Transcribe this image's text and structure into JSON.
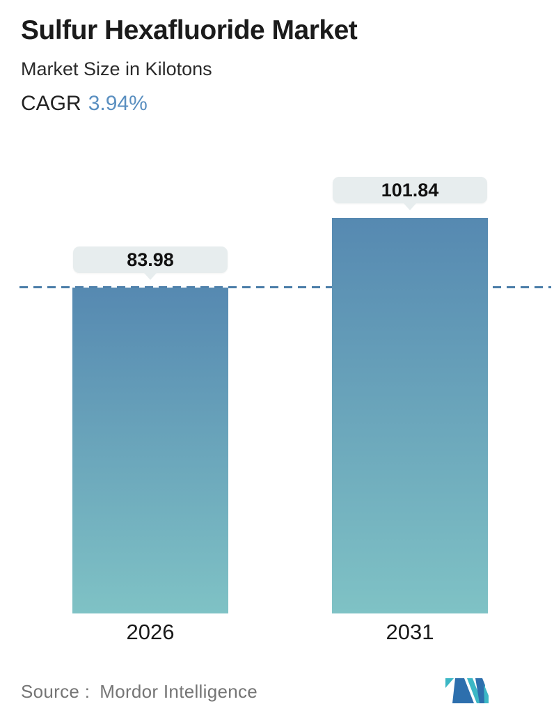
{
  "header": {
    "title": "Sulfur Hexafluoride Market",
    "subtitle": "Market Size in Kilotons",
    "cagr_label": "CAGR",
    "cagr_value": "3.94%"
  },
  "chart_data": {
    "type": "bar",
    "title": "Sulfur Hexafluoride Market",
    "ylabel": "Market Size in Kilotons",
    "categories": [
      "2026",
      "2031"
    ],
    "values": [
      83.98,
      101.84
    ],
    "value_labels": [
      "83.98",
      "101.84"
    ],
    "cagr_percent": 3.94,
    "ylim": [
      0,
      110
    ],
    "grid": false,
    "legend": false,
    "reference_line": {
      "style": "dashed",
      "value": 83.98,
      "color": "#4a7da8"
    },
    "bar_gradient_top": "#5689b1",
    "bar_gradient_bottom": "#7fc2c5",
    "label_bubble_bg": "#e7edee"
  },
  "footer": {
    "source_label": "Source :",
    "source_value": "Mordor Intelligence",
    "logo_name": "mordor-intelligence-logo",
    "logo_blue": "#2d6fad",
    "logo_teal": "#3cb7c5"
  },
  "colors": {
    "title_text": "#1b1b1b",
    "subtitle_text": "#2b2b2b",
    "cagr_value_text": "#5a8fc0",
    "axis_label_text": "#1a1a1a",
    "source_text": "#757575"
  }
}
